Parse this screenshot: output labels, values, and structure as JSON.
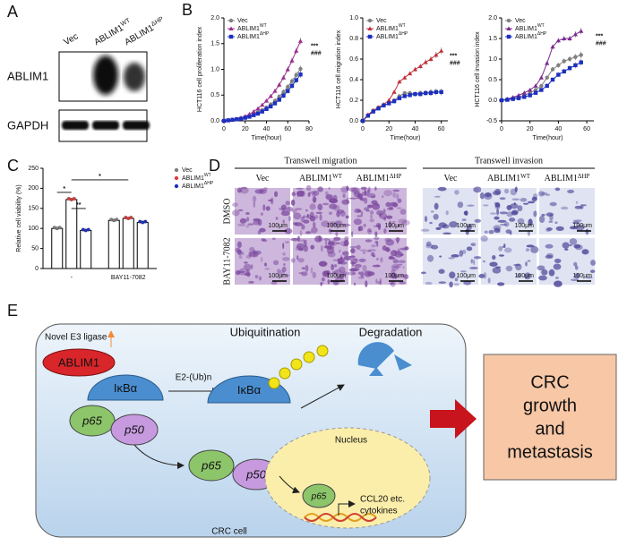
{
  "panel_labels": [
    "A",
    "B",
    "C",
    "D",
    "E"
  ],
  "panel_a": {
    "lanes": [
      {
        "name": "Vec"
      },
      {
        "name": "ABLIM1",
        "sup": "WT"
      },
      {
        "name": "ABLIM1",
        "sup": "ΔHP"
      }
    ],
    "blots": [
      "ABLIM1",
      "GAPDH"
    ]
  },
  "chart_data": [
    {
      "type": "line",
      "y_label": "HCT116 cell proliferation index",
      "x_label": "Time(hour)",
      "x": [
        0,
        4,
        8,
        12,
        16,
        20,
        24,
        28,
        32,
        36,
        40,
        44,
        48,
        52,
        56,
        60,
        64,
        68,
        72
      ],
      "series": [
        {
          "name": "Vec",
          "color": "#808080",
          "values": [
            0,
            0.01,
            0.02,
            0.03,
            0.05,
            0.07,
            0.1,
            0.13,
            0.17,
            0.21,
            0.26,
            0.32,
            0.39,
            0.47,
            0.56,
            0.66,
            0.77,
            0.89,
            1.01
          ]
        },
        {
          "name": "ABLIM1",
          "sup": "WT",
          "color": "#9b2f8f",
          "values": [
            0,
            0.01,
            0.02,
            0.04,
            0.06,
            0.09,
            0.13,
            0.18,
            0.24,
            0.31,
            0.39,
            0.48,
            0.58,
            0.7,
            0.84,
            1.0,
            1.17,
            1.36,
            1.55
          ]
        },
        {
          "name": "ABLIM1",
          "sup": "ΔHP",
          "color": "#1c2fc0",
          "values": [
            0,
            0.01,
            0.02,
            0.03,
            0.04,
            0.06,
            0.08,
            0.11,
            0.14,
            0.18,
            0.23,
            0.28,
            0.34,
            0.41,
            0.49,
            0.58,
            0.68,
            0.79,
            0.9
          ]
        }
      ],
      "xlim": [
        0,
        80
      ],
      "xticks": [
        0,
        20,
        40,
        60,
        80
      ],
      "ylim": [
        0,
        2
      ],
      "yticks": [
        {
          "value": 0,
          "label": "0.0"
        },
        {
          "value": 0.5,
          "label": "0.5"
        },
        {
          "value": 1,
          "label": "1.0"
        },
        {
          "value": 1.5,
          "label": "1.5"
        },
        {
          "value": 2,
          "label": "2.0"
        }
      ],
      "annotations": [
        "***",
        "###"
      ]
    },
    {
      "type": "line",
      "y_label": "HCT116 cell migration index",
      "x_label": "Time(hour)",
      "x": [
        0,
        4,
        8,
        12,
        16,
        20,
        24,
        28,
        32,
        36,
        40,
        44,
        48,
        52,
        56,
        60
      ],
      "series": [
        {
          "name": "Vec",
          "color": "#808080",
          "values": [
            0,
            0.05,
            0.1,
            0.13,
            0.15,
            0.17,
            0.2,
            0.24,
            0.27,
            0.27,
            0.26,
            0.27,
            0.27,
            0.28,
            0.28,
            0.28
          ]
        },
        {
          "name": "ABLIM1",
          "sup": "WT",
          "color": "#c0303a",
          "values": [
            0,
            0.06,
            0.1,
            0.13,
            0.16,
            0.2,
            0.28,
            0.38,
            0.42,
            0.46,
            0.5,
            0.53,
            0.57,
            0.6,
            0.64,
            0.68
          ]
        },
        {
          "name": "ABLIM1",
          "sup": "ΔHP",
          "color": "#1c2fc0",
          "values": [
            0,
            0.05,
            0.09,
            0.12,
            0.15,
            0.17,
            0.19,
            0.22,
            0.24,
            0.25,
            0.26,
            0.26,
            0.27,
            0.27,
            0.28,
            0.28
          ]
        }
      ],
      "xlim": [
        0,
        65
      ],
      "xticks": [
        0,
        20,
        40,
        60
      ],
      "ylim": [
        0,
        1
      ],
      "yticks": [
        {
          "value": 0,
          "label": "0.0"
        },
        0.2,
        0.4,
        0.6,
        0.8,
        {
          "value": 1,
          "label": "1.0"
        }
      ],
      "annotations": [
        "***",
        "###"
      ]
    },
    {
      "type": "line",
      "y_label": "HCT116 cell invasion index",
      "x_label": "Time(hour)",
      "x": [
        0,
        4,
        8,
        12,
        16,
        20,
        24,
        28,
        32,
        36,
        40,
        44,
        48,
        52,
        56
      ],
      "series": [
        {
          "name": "Vec",
          "color": "#808080",
          "values": [
            0,
            0.02,
            0.05,
            0.08,
            0.12,
            0.18,
            0.25,
            0.35,
            0.55,
            0.75,
            0.85,
            0.95,
            1.0,
            1.05,
            1.1
          ]
        },
        {
          "name": "ABLIM1",
          "sup": "WT",
          "color": "#7a2a8f",
          "values": [
            0,
            0.03,
            0.07,
            0.12,
            0.18,
            0.25,
            0.35,
            0.55,
            0.9,
            1.3,
            1.45,
            1.5,
            1.5,
            1.6,
            1.68
          ]
        },
        {
          "name": "ABLIM1",
          "sup": "ΔHP",
          "color": "#1c2fc0",
          "values": [
            0,
            0.01,
            0.03,
            0.05,
            0.08,
            0.12,
            0.18,
            0.25,
            0.35,
            0.5,
            0.62,
            0.7,
            0.78,
            0.85,
            0.92
          ]
        }
      ],
      "xlim": [
        0,
        65
      ],
      "xticks": [
        0,
        20,
        40,
        60
      ],
      "ylim": [
        -0.5,
        2
      ],
      "yticks": [
        -0.5,
        {
          "value": 0,
          "label": "0.0"
        },
        0.5,
        {
          "value": 1,
          "label": "1.0"
        },
        1.5,
        {
          "value": 2,
          "label": "2.0"
        }
      ],
      "annotations": [
        "***",
        "###"
      ]
    },
    {
      "type": "bar",
      "y_label": "Relative cell viability (%)",
      "categories": [
        "-",
        "BAY11-7082"
      ],
      "series": [
        {
          "name": "Vec",
          "color": "#808080",
          "values": [
            100,
            120
          ]
        },
        {
          "name": "ABLIM1",
          "sup": "WT",
          "color": "#e03c3c",
          "values": [
            172,
            125
          ]
        },
        {
          "name": "ABLIM1",
          "sup": "ΔHP",
          "color": "#1c2fc0",
          "values": [
            95,
            115
          ]
        }
      ],
      "ylim": [
        0,
        250
      ],
      "yticks": [
        0,
        50,
        100,
        150,
        200,
        250
      ],
      "annotations": [
        "*",
        "**",
        "*"
      ]
    }
  ],
  "panel_d": {
    "groups": [
      "Transwell migration",
      "Transwell invasion"
    ],
    "columns": [
      {
        "name": "Vec"
      },
      {
        "name": "ABLIM1",
        "sup": "WT"
      },
      {
        "name": "ABLIM1",
        "sup": "ΔHP"
      }
    ],
    "rows": [
      "DMSO",
      "BAY11-7082"
    ],
    "scale_bar": "100μm"
  },
  "panel_e": {
    "e3_label": "Novel E3 ligase",
    "ablim1": "ABLIM1",
    "ikba": "IκBα",
    "p65": "p65",
    "p50": "p50",
    "ubiquitination": "Ubiquitination",
    "e2": "E2-(Ub)n",
    "degradation": "Degradation",
    "nucleus": "Nucleus",
    "cytokines": [
      "CCL20 etc.",
      "cytokines"
    ],
    "cell": "CRC cell",
    "outcome": [
      "CRC",
      "growth",
      "and",
      "metastasis"
    ]
  }
}
